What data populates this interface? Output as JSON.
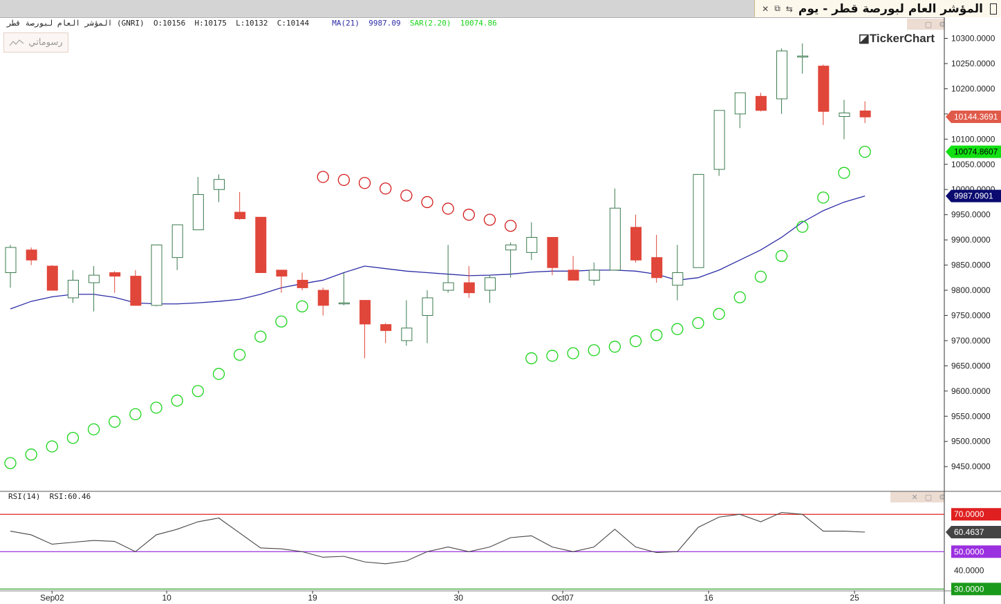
{
  "window": {
    "title": "المؤشر العام لبورصة قطر - يوم",
    "close_glyph": "✕",
    "restore_glyph": "⧉",
    "detach_glyph": "⇆"
  },
  "info_bar": {
    "symbol": "المؤشر العام لبورصة قطر (GNRI)",
    "open": "O:10156",
    "high": "H:10175",
    "low": "L:10132",
    "close": "C:10144",
    "ma_label": "MA(21)",
    "ma_value": "9987.09",
    "sar_label": "SAR(2.20)",
    "sar_value": "10074.86"
  },
  "chart_type_button": {
    "label": "رسوماتي",
    "icon": "line-chart-icon"
  },
  "logo": "TickerChart",
  "rsi_info": {
    "label": "RSI(14)",
    "value_text": "RSI:60.46"
  },
  "colors": {
    "up_candle": "#3a7a4e",
    "down_candle": "#e0463a",
    "ma_line": "#2b2ba6",
    "sar_up": "#19d41a",
    "sar_down": "#d41a1a",
    "rsi_line": "#444444",
    "rsi_70": "#e02020",
    "rsi_50": "#9b30e0",
    "rsi_30": "#1a9a1a"
  },
  "chart_data": {
    "type": "candlestick",
    "price_axis": {
      "ticks": [
        10300,
        10250,
        10200,
        10150,
        10100,
        10050,
        10000,
        9950,
        9900,
        9850,
        9800,
        9750,
        9700,
        9650,
        9600,
        9550,
        9500,
        9450
      ],
      "tick_labels": [
        "10300.0000",
        "10250.0000",
        "10200.0000",
        "10150.0000",
        "10100.0000",
        "10050.0000",
        "10000.0000",
        "9950.0000",
        "9900.0000",
        "9850.0000",
        "9800.0000",
        "9750.0000",
        "9700.0000",
        "9650.0000",
        "9600.0000",
        "9550.0000",
        "9500.0000",
        "9450.0000"
      ],
      "range": [
        9405,
        10335
      ]
    },
    "price_markers": [
      {
        "label": "10144.3691",
        "value": 10144.37,
        "color": "#e05a4a"
      },
      {
        "label": "10074.8607",
        "value": 10074.86,
        "color": "#12e012"
      },
      {
        "label": "9987.0901",
        "value": 9987.09,
        "color": "#0a0a70"
      }
    ],
    "x_labels": [
      {
        "index": 2,
        "label": "Sep02"
      },
      {
        "index": 7.5,
        "label": "10"
      },
      {
        "index": 14.5,
        "label": "19"
      },
      {
        "index": 21.5,
        "label": "30"
      },
      {
        "index": 26.5,
        "label": "Oct07"
      },
      {
        "index": 33.5,
        "label": "16"
      },
      {
        "index": 40.5,
        "label": "25"
      }
    ],
    "candles": [
      {
        "o": 9835,
        "h": 9890,
        "l": 9805,
        "c": 9885
      },
      {
        "o": 9880,
        "h": 9885,
        "l": 9850,
        "c": 9860
      },
      {
        "o": 9848,
        "h": 9850,
        "l": 9800,
        "c": 9800
      },
      {
        "o": 9785,
        "h": 9840,
        "l": 9775,
        "c": 9820
      },
      {
        "o": 9815,
        "h": 9848,
        "l": 9758,
        "c": 9830
      },
      {
        "o": 9835,
        "h": 9838,
        "l": 9795,
        "c": 9828
      },
      {
        "o": 9828,
        "h": 9840,
        "l": 9770,
        "c": 9770
      },
      {
        "o": 9770,
        "h": 9890,
        "l": 9768,
        "c": 9890
      },
      {
        "o": 9865,
        "h": 9930,
        "l": 9840,
        "c": 9930
      },
      {
        "o": 9920,
        "h": 10025,
        "l": 9920,
        "c": 9990
      },
      {
        "o": 10000,
        "h": 10030,
        "l": 9975,
        "c": 10020
      },
      {
        "o": 9955,
        "h": 9995,
        "l": 9940,
        "c": 9942
      },
      {
        "o": 9945,
        "h": 9945,
        "l": 9835,
        "c": 9835
      },
      {
        "o": 9840,
        "h": 9840,
        "l": 9795,
        "c": 9828
      },
      {
        "o": 9820,
        "h": 9835,
        "l": 9800,
        "c": 9805
      },
      {
        "o": 9800,
        "h": 9805,
        "l": 9750,
        "c": 9770
      },
      {
        "o": 9775,
        "h": 9835,
        "l": 9770,
        "c": 9775
      },
      {
        "o": 9780,
        "h": 9780,
        "l": 9665,
        "c": 9733
      },
      {
        "o": 9732,
        "h": 9735,
        "l": 9695,
        "c": 9720
      },
      {
        "o": 9700,
        "h": 9780,
        "l": 9690,
        "c": 9725
      },
      {
        "o": 9750,
        "h": 9800,
        "l": 9695,
        "c": 9785
      },
      {
        "o": 9800,
        "h": 9890,
        "l": 9795,
        "c": 9815
      },
      {
        "o": 9815,
        "h": 9848,
        "l": 9785,
        "c": 9795
      },
      {
        "o": 9800,
        "h": 9830,
        "l": 9775,
        "c": 9825
      },
      {
        "o": 9880,
        "h": 9895,
        "l": 9825,
        "c": 9890
      },
      {
        "o": 9875,
        "h": 9935,
        "l": 9860,
        "c": 9905
      },
      {
        "o": 9905,
        "h": 9905,
        "l": 9830,
        "c": 9845
      },
      {
        "o": 9840,
        "h": 9868,
        "l": 9820,
        "c": 9820
      },
      {
        "o": 9820,
        "h": 9855,
        "l": 9810,
        "c": 9840
      },
      {
        "o": 9840,
        "h": 10002,
        "l": 9840,
        "c": 9963
      },
      {
        "o": 9925,
        "h": 9950,
        "l": 9855,
        "c": 9860
      },
      {
        "o": 9865,
        "h": 9910,
        "l": 9815,
        "c": 9825
      },
      {
        "o": 9810,
        "h": 9890,
        "l": 9780,
        "c": 9835
      },
      {
        "o": 9845,
        "h": 10030,
        "l": 9845,
        "c": 10030
      },
      {
        "o": 10040,
        "h": 10157,
        "l": 10027,
        "c": 10157
      },
      {
        "o": 10150,
        "h": 10192,
        "l": 10122,
        "c": 10192
      },
      {
        "o": 10185,
        "h": 10192,
        "l": 10155,
        "c": 10157
      },
      {
        "o": 10180,
        "h": 10280,
        "l": 10150,
        "c": 10275
      },
      {
        "o": 10265,
        "h": 10290,
        "l": 10230,
        "c": 10265
      },
      {
        "o": 10245,
        "h": 10248,
        "l": 10128,
        "c": 10155
      },
      {
        "o": 10145,
        "h": 10178,
        "l": 10100,
        "c": 10152
      },
      {
        "o": 10156,
        "h": 10175,
        "l": 10132,
        "c": 10144
      }
    ],
    "ma": [
      9763,
      9778,
      9787,
      9792,
      9792,
      9786,
      9775,
      9773,
      9773,
      9775,
      9778,
      9782,
      9792,
      9805,
      9813,
      9820,
      9835,
      9848,
      9843,
      9838,
      9835,
      9832,
      9829,
      9830,
      9832,
      9836,
      9838,
      9838,
      9840,
      9840,
      9838,
      9832,
      9820,
      9825,
      9840,
      9860,
      9880,
      9905,
      9935,
      9958,
      9975,
      9987.09
    ],
    "sar": [
      {
        "i": 0,
        "v": 9457,
        "dir": "up"
      },
      {
        "i": 1,
        "v": 9474,
        "dir": "up"
      },
      {
        "i": 2,
        "v": 9490,
        "dir": "up"
      },
      {
        "i": 3,
        "v": 9507,
        "dir": "up"
      },
      {
        "i": 4,
        "v": 9524,
        "dir": "up"
      },
      {
        "i": 5,
        "v": 9539,
        "dir": "up"
      },
      {
        "i": 6,
        "v": 9554,
        "dir": "up"
      },
      {
        "i": 7,
        "v": 9567,
        "dir": "up"
      },
      {
        "i": 8,
        "v": 9581,
        "dir": "up"
      },
      {
        "i": 9,
        "v": 9600,
        "dir": "up"
      },
      {
        "i": 10,
        "v": 9634,
        "dir": "up"
      },
      {
        "i": 11,
        "v": 9672,
        "dir": "up"
      },
      {
        "i": 12,
        "v": 9708,
        "dir": "up"
      },
      {
        "i": 13,
        "v": 9738,
        "dir": "up"
      },
      {
        "i": 14,
        "v": 9768,
        "dir": "up"
      },
      {
        "i": 15,
        "v": 10025,
        "dir": "down"
      },
      {
        "i": 16,
        "v": 10019,
        "dir": "down"
      },
      {
        "i": 17,
        "v": 10013,
        "dir": "down"
      },
      {
        "i": 18,
        "v": 10002,
        "dir": "down"
      },
      {
        "i": 19,
        "v": 9988,
        "dir": "down"
      },
      {
        "i": 20,
        "v": 9975,
        "dir": "down"
      },
      {
        "i": 21,
        "v": 9962,
        "dir": "down"
      },
      {
        "i": 22,
        "v": 9950,
        "dir": "down"
      },
      {
        "i": 23,
        "v": 9940,
        "dir": "down"
      },
      {
        "i": 24,
        "v": 9928,
        "dir": "down"
      },
      {
        "i": 25,
        "v": 9665,
        "dir": "up"
      },
      {
        "i": 26,
        "v": 9670,
        "dir": "up"
      },
      {
        "i": 27,
        "v": 9675,
        "dir": "up"
      },
      {
        "i": 28,
        "v": 9681,
        "dir": "up"
      },
      {
        "i": 29,
        "v": 9688,
        "dir": "up"
      },
      {
        "i": 30,
        "v": 9699,
        "dir": "up"
      },
      {
        "i": 31,
        "v": 9711,
        "dir": "up"
      },
      {
        "i": 32,
        "v": 9723,
        "dir": "up"
      },
      {
        "i": 33,
        "v": 9735,
        "dir": "up"
      },
      {
        "i": 34,
        "v": 9753,
        "dir": "up"
      },
      {
        "i": 35,
        "v": 9786,
        "dir": "up"
      },
      {
        "i": 36,
        "v": 9827,
        "dir": "up"
      },
      {
        "i": 37,
        "v": 9868,
        "dir": "up"
      },
      {
        "i": 38,
        "v": 9926,
        "dir": "up"
      },
      {
        "i": 39,
        "v": 9984,
        "dir": "up"
      },
      {
        "i": 40,
        "v": 10033,
        "dir": "up"
      },
      {
        "i": 41,
        "v": 10074.86,
        "dir": "up"
      }
    ],
    "rsi": {
      "values": [
        61,
        59,
        54,
        55,
        56,
        55.5,
        50,
        59,
        62,
        66,
        68,
        60,
        52,
        51.5,
        50,
        47,
        47.5,
        44.5,
        43.5,
        45,
        50,
        52.5,
        50,
        52.5,
        57.5,
        58.5,
        52.5,
        50,
        52.5,
        62,
        52.5,
        49.5,
        50,
        63,
        68.5,
        70,
        66,
        71,
        70,
        61,
        61,
        60.46
      ],
      "levels": [
        70,
        50,
        30
      ],
      "level_labels": [
        "70.0000",
        "50.0000",
        "30.0000"
      ],
      "tick_labels": [
        {
          "value": 40,
          "label": "40.0000"
        }
      ],
      "current_label": "60.4637",
      "range": [
        29,
        76
      ]
    }
  }
}
